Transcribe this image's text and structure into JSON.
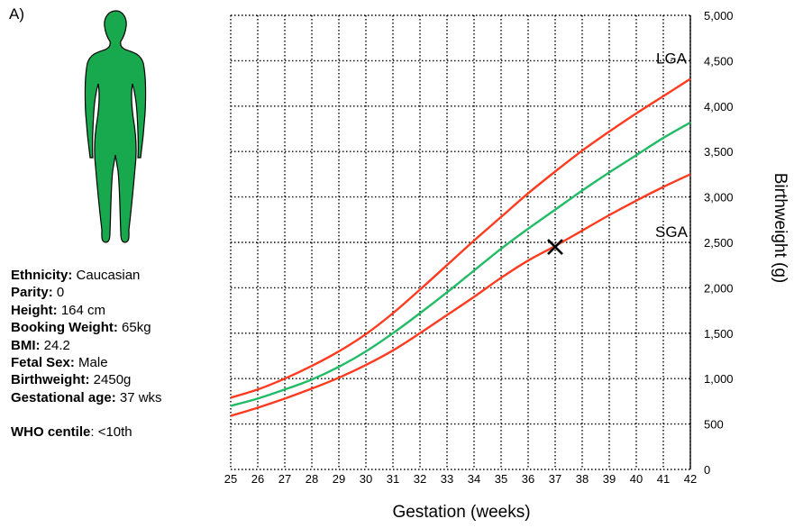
{
  "panel_label": "A)",
  "info": {
    "ethnicity": {
      "label": "Ethnicity:",
      "value": "Caucasian"
    },
    "parity": {
      "label": "Parity:",
      "value": "0"
    },
    "height": {
      "label": "Height:",
      "value": "164 cm"
    },
    "booking_weight": {
      "label": "Booking Weight:",
      "value": "65kg"
    },
    "bmi": {
      "label": "BMI:",
      "value": "24.2"
    },
    "fetal_sex": {
      "label": "Fetal Sex:",
      "value": "Male"
    },
    "birthweight": {
      "label": "Birthweight:",
      "value": "2450g"
    },
    "gestational_age": {
      "label": "Gestational age:",
      "value": "37 wks"
    },
    "who_centile": {
      "label": "WHO centile",
      "value": ": <10th"
    }
  },
  "colors": {
    "figure": "#18a84d",
    "figure_outline": "#000000",
    "centile_outer": "#ff3b1f",
    "centile_median": "#22bb66",
    "grid": "#000000",
    "marker": "#000000"
  },
  "icons": {
    "figure": "female-silhouette-icon",
    "marker": "cross-marker-icon"
  },
  "chart_data": {
    "type": "line",
    "xlabel": "Gestation (weeks)",
    "ylabel": "Birthweight (g)",
    "x_range": [
      25,
      42
    ],
    "y_range": [
      0,
      5000
    ],
    "grid": true,
    "grid_style": "dotted",
    "x_ticks": [
      25,
      26,
      27,
      28,
      29,
      30,
      31,
      32,
      33,
      34,
      35,
      36,
      37,
      38,
      39,
      40,
      41,
      42
    ],
    "y_ticks": [
      {
        "value": 0,
        "label": "0"
      },
      {
        "value": 500,
        "label": "500"
      },
      {
        "value": 1000,
        "label": "1,000"
      },
      {
        "value": 1500,
        "label": "1,500"
      },
      {
        "value": 2000,
        "label": "2,000"
      },
      {
        "value": 2500,
        "label": "2,500"
      },
      {
        "value": 3000,
        "label": "3,000"
      },
      {
        "value": 3500,
        "label": "3,500"
      },
      {
        "value": 4000,
        "label": "4,000"
      },
      {
        "value": 4500,
        "label": "4,500"
      },
      {
        "value": 5000,
        "label": "5,000"
      }
    ],
    "annotations": [
      {
        "text": "LGA",
        "x": 41.3,
        "y": 4470
      },
      {
        "text": "SGA",
        "x": 41.3,
        "y": 2560
      }
    ],
    "x": [
      25,
      26,
      27,
      28,
      29,
      30,
      31,
      32,
      33,
      34,
      35,
      36,
      37,
      38,
      39,
      40,
      41,
      42
    ],
    "series": [
      {
        "role": "upper",
        "color": "#ff3b1f",
        "values": [
          790,
          880,
          1000,
          1140,
          1300,
          1490,
          1720,
          1980,
          2250,
          2520,
          2780,
          3040,
          3280,
          3510,
          3720,
          3920,
          4110,
          4300
        ]
      },
      {
        "role": "median",
        "color": "#22bb66",
        "values": [
          700,
          780,
          880,
          990,
          1130,
          1300,
          1500,
          1720,
          1950,
          2190,
          2430,
          2650,
          2860,
          3070,
          3270,
          3460,
          3650,
          3820
        ]
      },
      {
        "role": "lower",
        "color": "#ff3b1f",
        "values": [
          590,
          680,
          780,
          890,
          1010,
          1150,
          1310,
          1500,
          1700,
          1900,
          2110,
          2300,
          2460,
          2630,
          2800,
          2960,
          3110,
          3250
        ]
      }
    ],
    "marker": {
      "x": 37,
      "y": 2450,
      "symbol": "x"
    }
  }
}
